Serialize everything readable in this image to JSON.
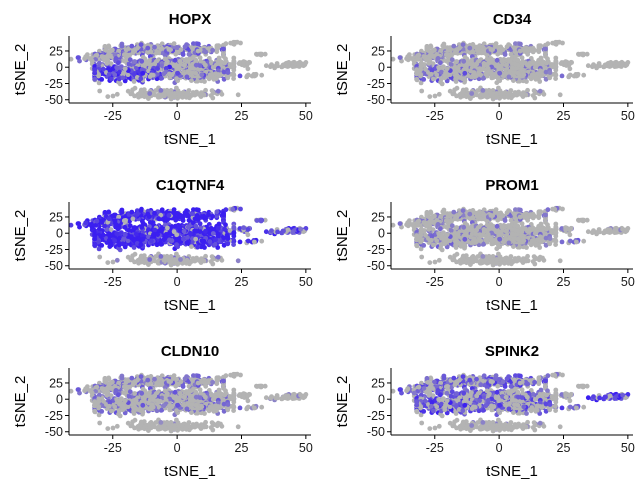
{
  "colors": {
    "low": "#b3b3b3",
    "high": "#3b1ff0",
    "axis": "#000000"
  },
  "chart_data": [
    {
      "type": "scatter",
      "title": "HOPX",
      "xlabel": "tSNE_1",
      "ylabel": "tSNE_2",
      "xlim": [
        -42,
        52
      ],
      "ylim": [
        -55,
        48
      ],
      "xticks": [
        -25,
        0,
        25,
        50
      ],
      "yticks": [
        -50,
        -25,
        0,
        25
      ],
      "xtick_labels": [
        "-25",
        "0",
        "25",
        "50"
      ],
      "ytick_labels": [
        "-50",
        "-25",
        "0",
        "25"
      ],
      "grid": false,
      "legend": "none",
      "expression": {
        "main": 0.35,
        "left": 0.7,
        "bottom": 0.15,
        "right_clusters": 0.0,
        "far_right": 0.0
      }
    },
    {
      "type": "scatter",
      "title": "CD34",
      "xlabel": "tSNE_1",
      "ylabel": "tSNE_2",
      "xlim": [
        -42,
        52
      ],
      "ylim": [
        -55,
        48
      ],
      "xticks": [
        -25,
        0,
        25,
        50
      ],
      "yticks": [
        -50,
        -25,
        0,
        25
      ],
      "xtick_labels": [
        "-25",
        "0",
        "25",
        "50"
      ],
      "ytick_labels": [
        "-50",
        "-25",
        "0",
        "25"
      ],
      "grid": false,
      "legend": "none",
      "expression": {
        "main": 0.2,
        "left": 0.35,
        "bottom": 0.1,
        "right_clusters": 0.0,
        "far_right": 0.0
      }
    },
    {
      "type": "scatter",
      "title": "C1QTNF4",
      "xlabel": "tSNE_1",
      "ylabel": "tSNE_2",
      "xlim": [
        -42,
        52
      ],
      "ylim": [
        -55,
        48
      ],
      "xticks": [
        -25,
        0,
        25,
        50
      ],
      "yticks": [
        -50,
        -25,
        0,
        25
      ],
      "xtick_labels": [
        "-25",
        "0",
        "25",
        "50"
      ],
      "ytick_labels": [
        "-50",
        "-25",
        "0",
        "25"
      ],
      "grid": false,
      "legend": "none",
      "expression": {
        "main": 0.9,
        "left": 0.95,
        "bottom": 0.2,
        "right_clusters": 0.6,
        "far_right": 0.6
      }
    },
    {
      "type": "scatter",
      "title": "PROM1",
      "xlabel": "tSNE_1",
      "ylabel": "tSNE_2",
      "xlim": [
        -42,
        52
      ],
      "ylim": [
        -55,
        48
      ],
      "xticks": [
        -25,
        0,
        25,
        50
      ],
      "yticks": [
        -50,
        -25,
        0,
        25
      ],
      "xtick_labels": [
        "-25",
        "0",
        "25",
        "50"
      ],
      "ytick_labels": [
        "-50",
        "-25",
        "0",
        "25"
      ],
      "grid": false,
      "legend": "none",
      "expression": {
        "main": 0.2,
        "left": 0.25,
        "bottom": 0.05,
        "right_clusters": 0.3,
        "far_right": 0.05
      }
    },
    {
      "type": "scatter",
      "title": "CLDN10",
      "xlabel": "tSNE_1",
      "ylabel": "tSNE_2",
      "xlim": [
        -42,
        52
      ],
      "ylim": [
        -55,
        48
      ],
      "xticks": [
        -25,
        0,
        25,
        50
      ],
      "yticks": [
        -50,
        -25,
        0,
        25
      ],
      "xtick_labels": [
        "-25",
        "0",
        "25",
        "50"
      ],
      "ytick_labels": [
        "-50",
        "-25",
        "0",
        "25"
      ],
      "grid": false,
      "legend": "none",
      "expression": {
        "main": 0.3,
        "left": 0.3,
        "bottom": 0.05,
        "right_clusters": 0.1,
        "far_right": 0.1
      }
    },
    {
      "type": "scatter",
      "title": "SPINK2",
      "xlabel": "tSNE_1",
      "ylabel": "tSNE_2",
      "xlim": [
        -42,
        52
      ],
      "ylim": [
        -55,
        48
      ],
      "xticks": [
        -25,
        0,
        25,
        50
      ],
      "yticks": [
        -50,
        -25,
        0,
        25
      ],
      "xtick_labels": [
        "-25",
        "0",
        "25",
        "50"
      ],
      "ytick_labels": [
        "-50",
        "-25",
        "0",
        "25"
      ],
      "grid": false,
      "legend": "none",
      "expression": {
        "main": 0.45,
        "left": 0.55,
        "bottom": 0.1,
        "right_clusters": 0.3,
        "far_right": 0.7
      }
    }
  ]
}
